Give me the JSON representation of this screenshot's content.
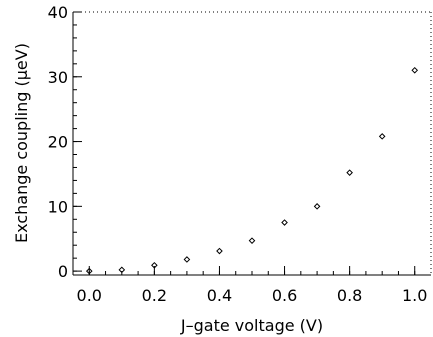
{
  "chart_data": {
    "type": "scatter",
    "title": "",
    "xlabel": "J–gate voltage (V)",
    "ylabel": "Exchange coupling (μeV)",
    "xlim": [
      -0.05,
      1.05
    ],
    "ylim": [
      -0.6,
      40
    ],
    "xticks": [
      0.0,
      0.2,
      0.4,
      0.6,
      0.8,
      1.0
    ],
    "xtick_labels": [
      "0.0",
      "0.2",
      "0.4",
      "0.6",
      "0.8",
      "1.0"
    ],
    "yticks": [
      0,
      10,
      20,
      30,
      40
    ],
    "ytick_labels": [
      "0",
      "10",
      "20",
      "30",
      "40"
    ],
    "grid": false,
    "legend": "none",
    "marker": "diamond",
    "series": [
      {
        "x": [
          0.0,
          0.1,
          0.2,
          0.3,
          0.4,
          0.5,
          0.6,
          0.7,
          0.8,
          0.9,
          1.0
        ],
        "y": [
          0.0,
          0.2,
          0.9,
          1.8,
          3.1,
          4.7,
          7.5,
          10.0,
          15.2,
          20.8,
          31.0
        ]
      }
    ]
  }
}
